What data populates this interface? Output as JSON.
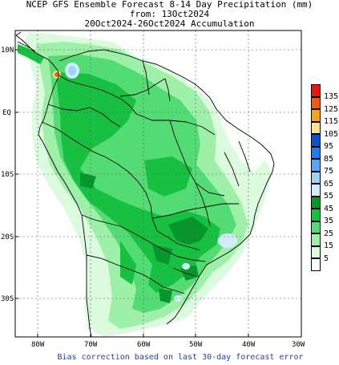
{
  "title": {
    "line1": "NCEP GFS Ensemble Forecast 8-14 Day Precipitation (mm)",
    "line2": "from: 13Oct2024",
    "line3": "20Oct2024-26Oct2024 Accumulation"
  },
  "axes": {
    "lon_labels": [
      "80W",
      "70W",
      "60W",
      "50W",
      "40W",
      "30W"
    ],
    "lat_labels": [
      "10N",
      "EQ",
      "10S",
      "20S",
      "30S"
    ]
  },
  "legend": {
    "levels": [
      {
        "label": "135",
        "color": "#e8160e"
      },
      {
        "label": "125",
        "color": "#f25a10"
      },
      {
        "label": "115",
        "color": "#f7a21c"
      },
      {
        "label": "105",
        "color": "#fbe48d"
      },
      {
        "label": "95",
        "color": "#0a52c8"
      },
      {
        "label": "85",
        "color": "#1e7cf0"
      },
      {
        "label": "75",
        "color": "#55a8f5"
      },
      {
        "label": "65",
        "color": "#9dd2fb"
      },
      {
        "label": "55",
        "color": "#d2ecfc"
      },
      {
        "label": "45",
        "color": "#07962b"
      },
      {
        "label": "35",
        "color": "#18c042"
      },
      {
        "label": "25",
        "color": "#52dc73"
      },
      {
        "label": "15",
        "color": "#9ef0a8"
      },
      {
        "label": "5",
        "color": "#dcfade"
      }
    ],
    "bottom_color": "#ffffff"
  },
  "footer": "Bias correction based on last 30-day forecast error"
}
